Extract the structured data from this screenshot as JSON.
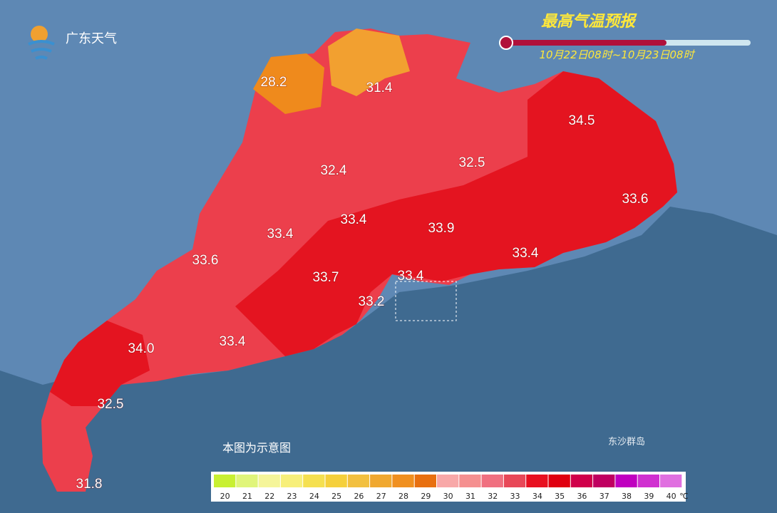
{
  "logo": "广东天气",
  "title": "最高气温预报",
  "subtitle": "10月22日08时~10月23日08时",
  "temperatures": [
    "28.2",
    "31.4",
    "34.5",
    "32.4",
    "32.5",
    "33.6",
    "33.4",
    "33.4",
    "33.9",
    "33.6",
    "33.4",
    "33.7",
    "33.4",
    "33.2",
    "34.0",
    "33.4",
    "32.5",
    "31.8"
  ],
  "note": "本图为示意图",
  "island": "东沙群岛",
  "legend": {
    "ticks": [
      20,
      21,
      22,
      23,
      24,
      25,
      26,
      27,
      28,
      29,
      30,
      31,
      32,
      33,
      34,
      35,
      36,
      37,
      38,
      39,
      40
    ],
    "colors": [
      "#c8f032",
      "#e0f57a",
      "#f5f59a",
      "#f7ef7a",
      "#f5e050",
      "#f5d03c",
      "#f2c040",
      "#f0a830",
      "#f09020",
      "#e87010",
      "#f8a8a8",
      "#f59090",
      "#f07080",
      "#e84858",
      "#e81020",
      "#e00010",
      "#d0004a",
      "#c00060",
      "#c000c0",
      "#d030d0",
      "#e070e0"
    ],
    "unit": "℃"
  }
}
